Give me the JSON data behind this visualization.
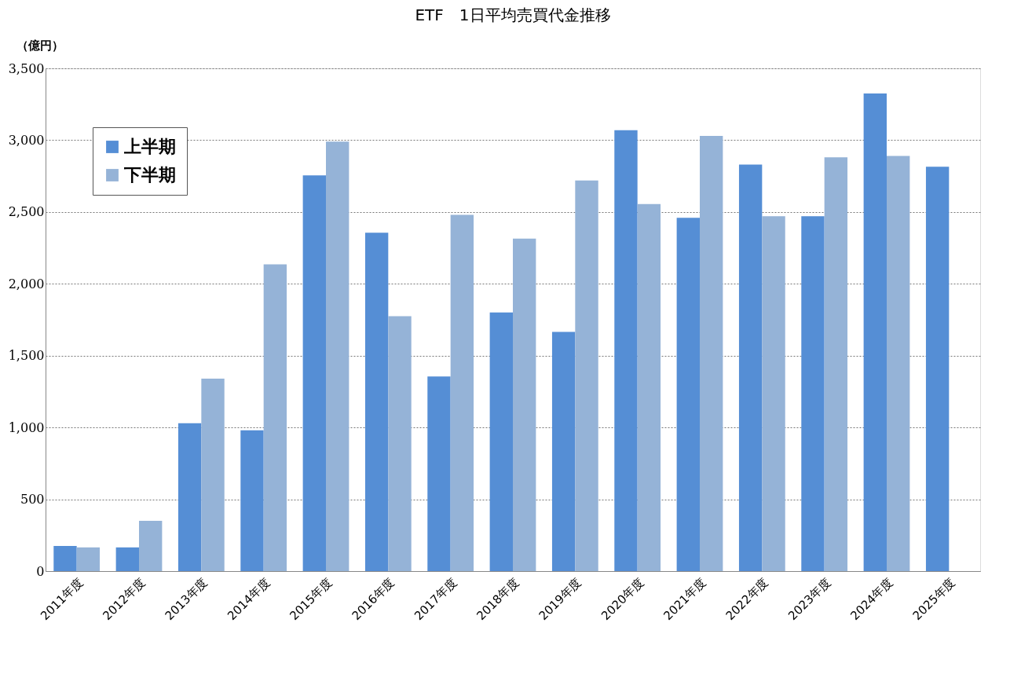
{
  "chart_data": {
    "type": "bar",
    "title": "ETF　1日平均売買代金推移",
    "ylabel": "（億円）",
    "categories": [
      "2011年度",
      "2012年度",
      "2013年度",
      "2014年度",
      "2015年度",
      "2016年度",
      "2017年度",
      "2018年度",
      "2019年度",
      "2020年度",
      "2021年度",
      "2022年度",
      "2023年度",
      "2024年度",
      "2025年度"
    ],
    "series": [
      {
        "name": "上半期",
        "color": "#558ed5",
        "values": [
          175,
          165,
          1030,
          980,
          2755,
          2355,
          1355,
          1800,
          1665,
          3070,
          2460,
          2830,
          2470,
          3325,
          2815
        ]
      },
      {
        "name": "下半期",
        "color": "#95b3d7",
        "values": [
          165,
          350,
          1340,
          2135,
          2990,
          1775,
          2480,
          2315,
          2720,
          2555,
          3030,
          2470,
          2880,
          2890,
          null
        ]
      }
    ],
    "ylim": [
      0,
      3500
    ],
    "yticks": [
      0,
      500,
      {
        "value": 1000,
        "label": "1,000"
      },
      {
        "value": 1500,
        "label": "1,500"
      },
      {
        "value": 2000,
        "label": "2,000"
      },
      {
        "value": 2500,
        "label": "2,500"
      },
      {
        "value": 3000,
        "label": "3,000"
      },
      {
        "value": 3500,
        "label": "3,500"
      }
    ],
    "grid": "y",
    "legend": "top left"
  }
}
